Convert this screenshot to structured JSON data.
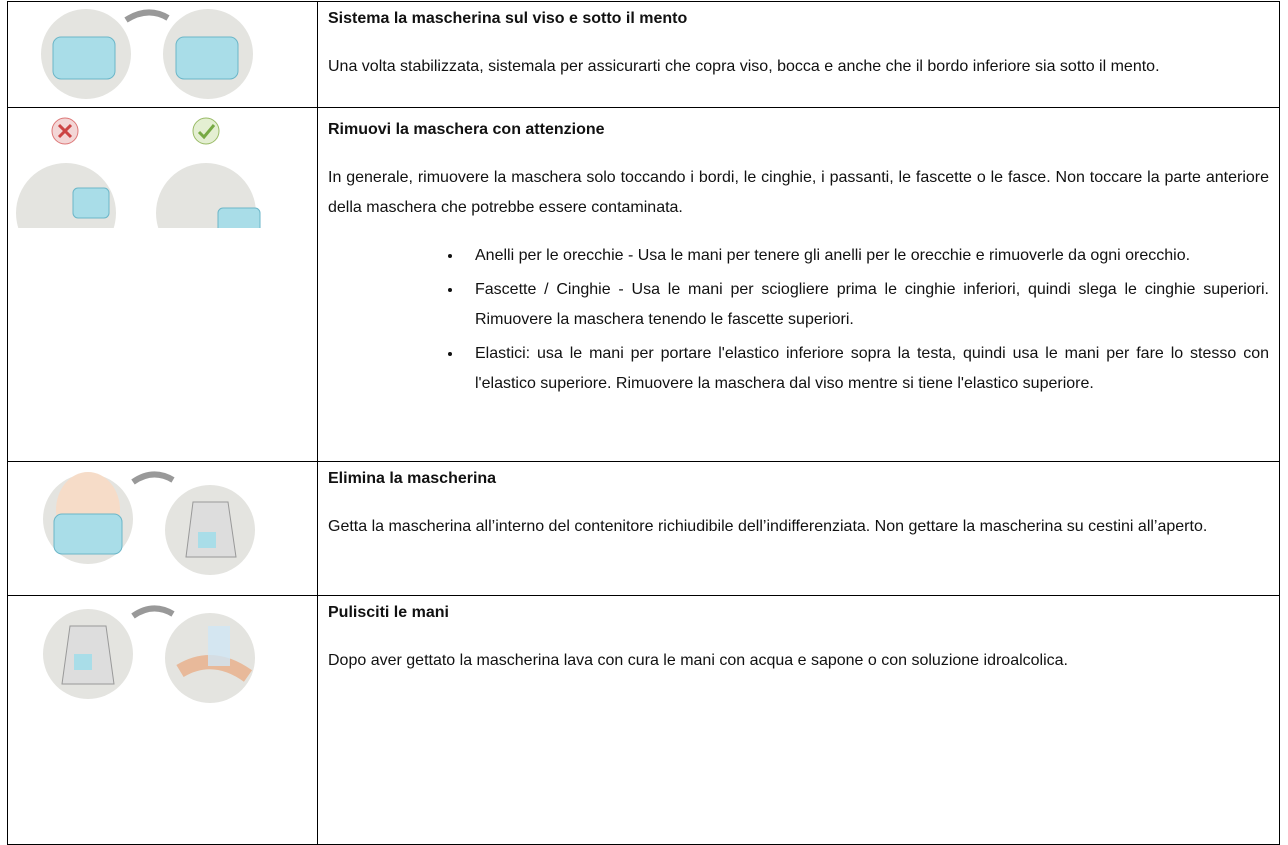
{
  "rows": [
    {
      "title": "Sistema la mascherina sul viso e sotto il mento",
      "paragraphs": [
        "Una volta stabilizzata, sistemala per assicurarti che copra viso, bocca e anche che il bordo inferiore sia sotto il mento."
      ]
    },
    {
      "title": "Rimuovi la maschera con attenzione",
      "paragraphs": [
        "In generale, rimuovere la maschera solo toccando i bordi, le cinghie, i passanti, le fascette o le fasce. Non toccare la parte anteriore della maschera che potrebbe essere contaminata."
      ],
      "bullets": [
        "Anelli per le orecchie - Usa le mani per tenere gli anelli per le orecchie e rimuoverle da ogni orecchio.",
        "Fascette / Cinghie - Usa le mani per sciogliere prima le cinghie inferiori, quindi slega le cinghie superiori. Rimuovere la maschera tenendo le fascette superiori.",
        "Elastici: usa le mani per portare l'elastico inferiore sopra la testa, quindi usa le mani per fare lo stesso con l'elastico superiore. Rimuovere la maschera dal viso mentre si tiene l'elastico superiore."
      ]
    },
    {
      "title": "Elimina la mascherina",
      "paragraphs": [
        "Getta la mascherina all’interno del contenitore richiudibile dell’indifferenziata. Non gettare la mascherina su cestini all’aperto."
      ]
    },
    {
      "title": "Pulisciti le mani",
      "paragraphs": [
        "Dopo aver gettato la mascherina lava con cura le mani con acqua e sapone o con soluzione idroalcolica."
      ]
    }
  ]
}
